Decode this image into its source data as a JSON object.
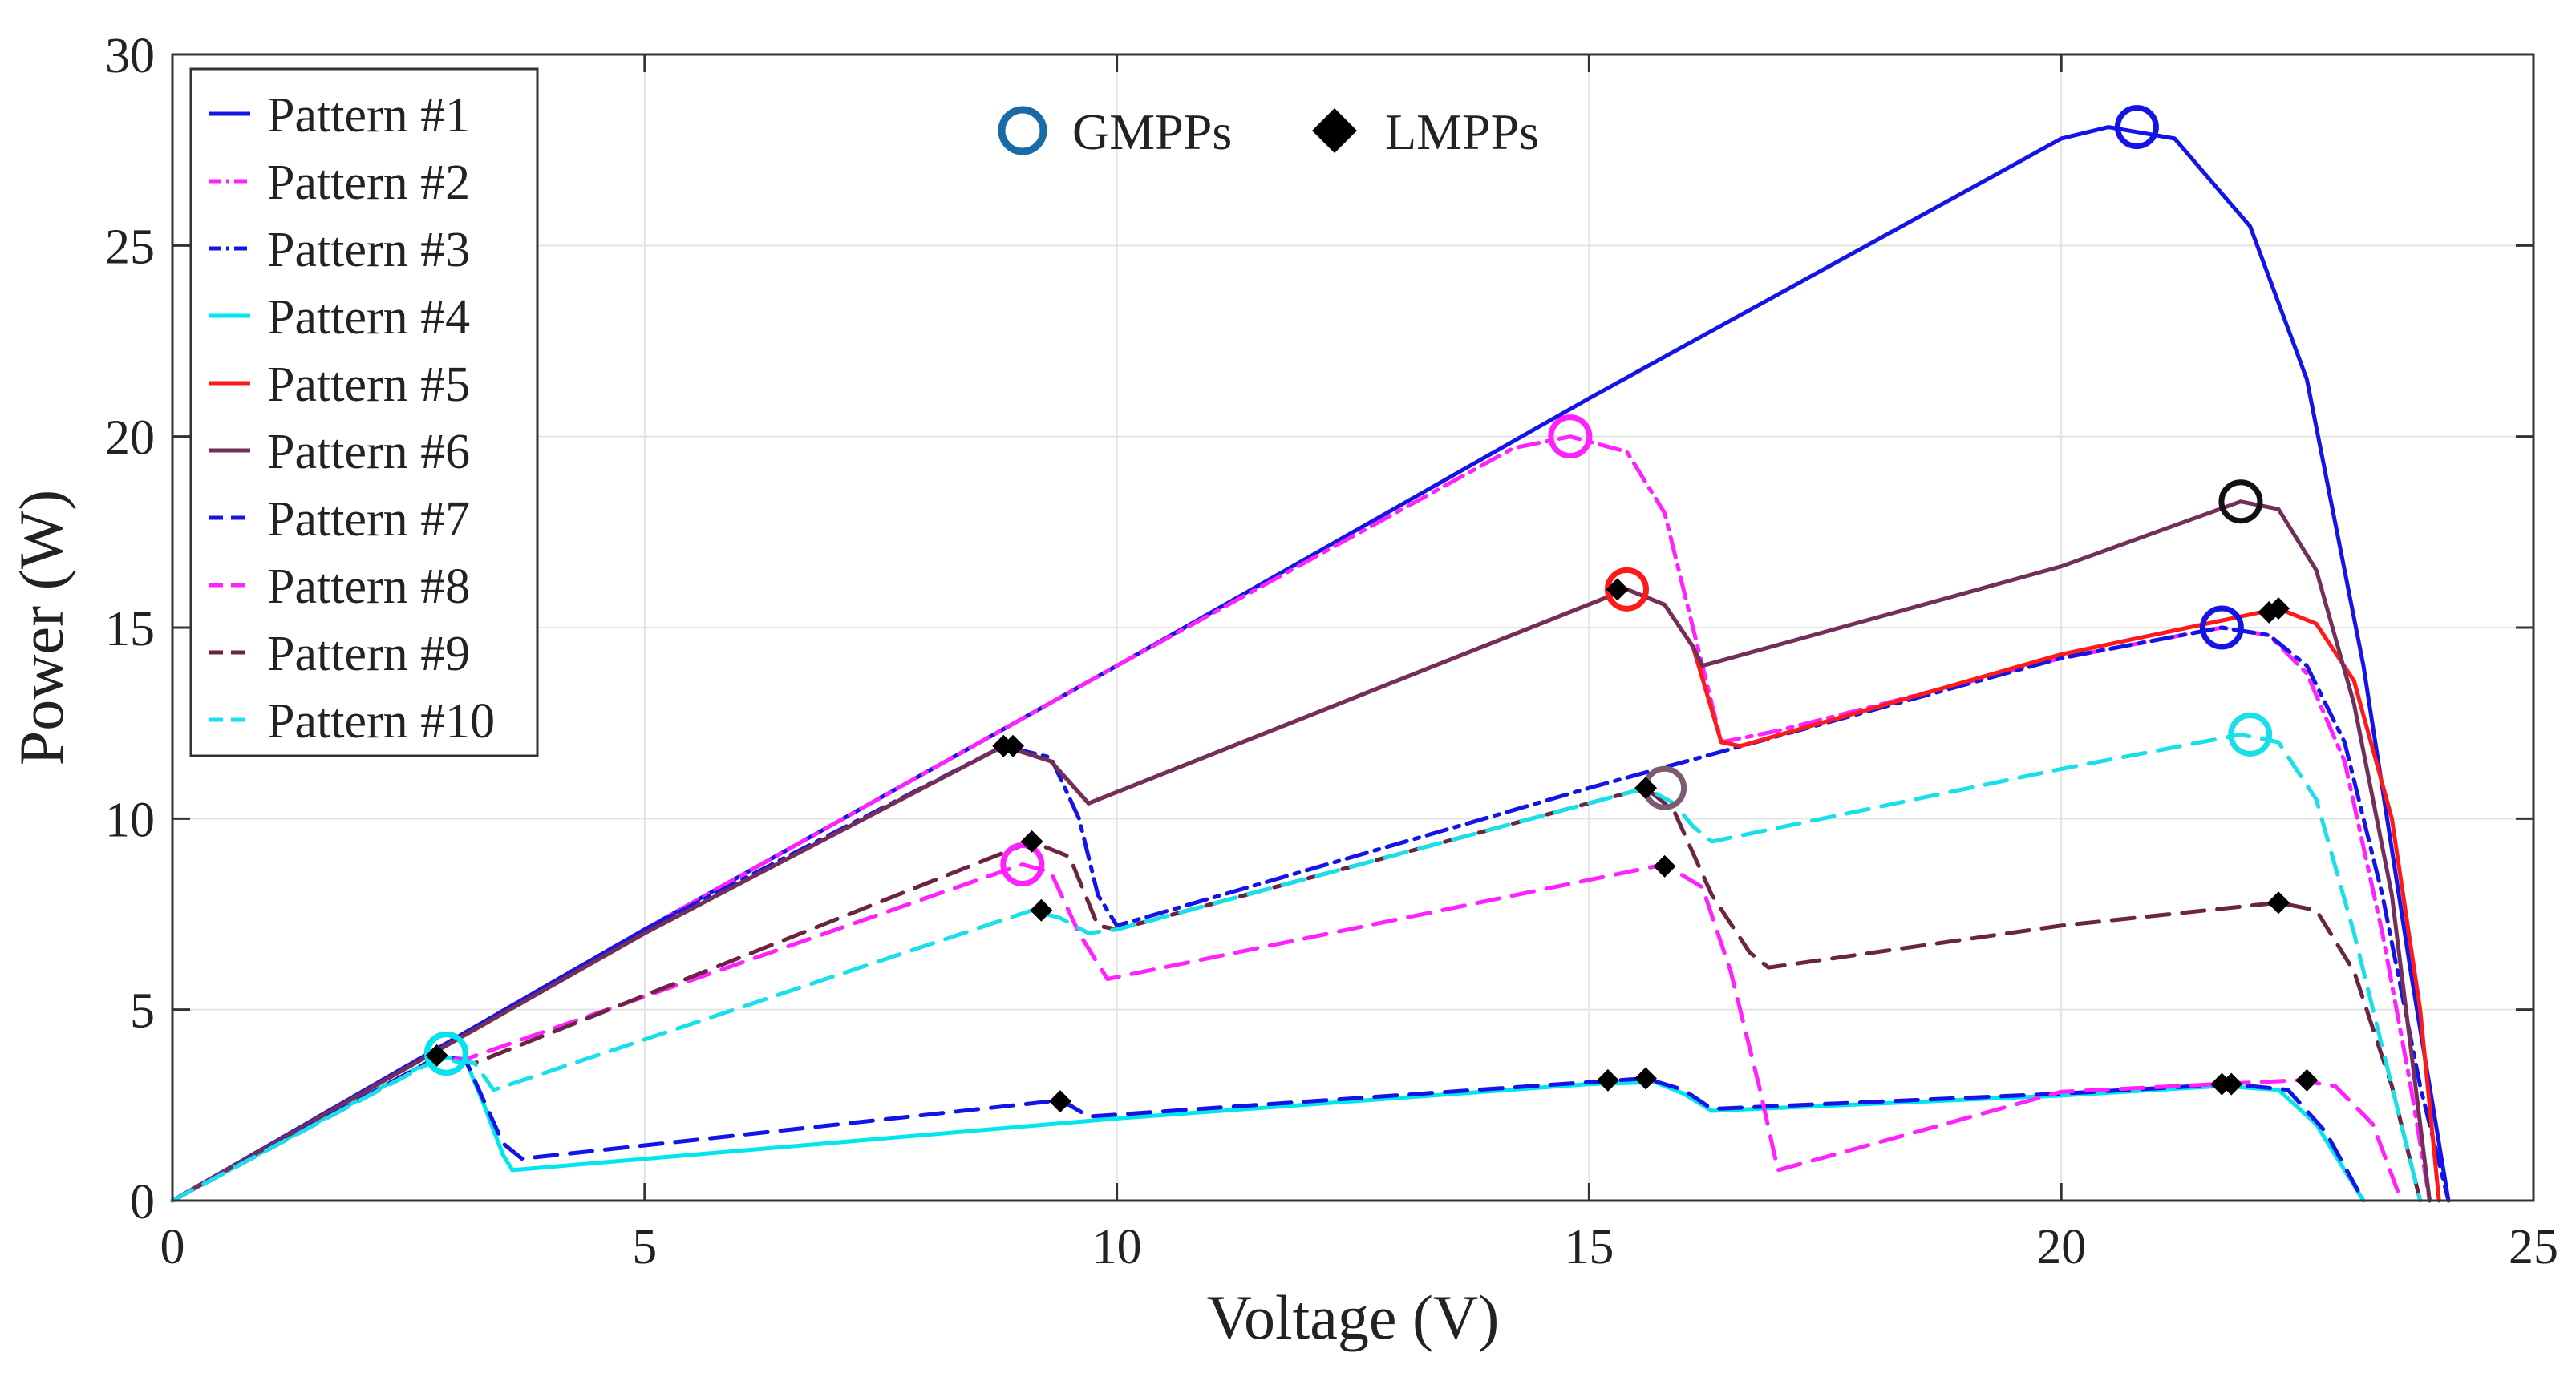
{
  "chart_data": {
    "type": "line",
    "title": "",
    "xlabel": "Voltage (V)",
    "ylabel": "Power (W)",
    "xlim": [
      0,
      25
    ],
    "ylim": [
      0,
      30
    ],
    "xticks": [
      0,
      5,
      10,
      15,
      20,
      25
    ],
    "yticks": [
      0,
      5,
      10,
      15,
      20,
      25,
      30
    ],
    "grid": true,
    "legend_position": "top-left",
    "markers_legend": {
      "gmpp_label": "GMPPs",
      "lmpp_label": "LMPPs"
    },
    "series": [
      {
        "name": "Pattern #1",
        "color": "#1414e6",
        "dash": "solid",
        "points": [
          [
            0,
            0
          ],
          [
            5,
            7.1
          ],
          [
            10,
            14
          ],
          [
            15,
            21
          ],
          [
            20,
            27.8
          ],
          [
            20.5,
            28.1
          ],
          [
            21.2,
            27.8
          ],
          [
            22,
            25.5
          ],
          [
            22.6,
            21.5
          ],
          [
            23.2,
            14
          ],
          [
            23.7,
            6
          ],
          [
            24.1,
            0
          ]
        ]
      },
      {
        "name": "Pattern #2",
        "color": "#ff22ff",
        "dash": "dashdot",
        "points": [
          [
            0,
            0
          ],
          [
            5,
            7.1
          ],
          [
            10,
            14
          ],
          [
            14.2,
            19.7
          ],
          [
            14.8,
            20
          ],
          [
            15.4,
            19.6
          ],
          [
            15.8,
            18
          ],
          [
            16.1,
            15
          ],
          [
            16.4,
            12
          ],
          [
            17,
            12.3
          ],
          [
            20,
            14.2
          ],
          [
            21.7,
            15
          ],
          [
            22.2,
            14.8
          ],
          [
            22.6,
            13.8
          ],
          [
            23,
            11.5
          ],
          [
            23.4,
            7
          ],
          [
            23.7,
            3
          ],
          [
            23.9,
            0
          ]
        ]
      },
      {
        "name": "Pattern #3",
        "color": "#1414e6",
        "dash": "dashdot",
        "points": [
          [
            0,
            0
          ],
          [
            5,
            7.1
          ],
          [
            8.8,
            11.9
          ],
          [
            9.3,
            11.6
          ],
          [
            9.6,
            10
          ],
          [
            9.8,
            8
          ],
          [
            10,
            7.2
          ],
          [
            15,
            10.8
          ],
          [
            20,
            14.2
          ],
          [
            21.7,
            15
          ],
          [
            22.2,
            14.8
          ],
          [
            22.6,
            14
          ],
          [
            23,
            12
          ],
          [
            23.4,
            8
          ],
          [
            23.8,
            3
          ],
          [
            24.1,
            0
          ]
        ]
      },
      {
        "name": "Pattern #4",
        "color": "#00e5ee",
        "dash": "solid",
        "points": [
          [
            0,
            0
          ],
          [
            2.8,
            3.75
          ],
          [
            3.1,
            3.7
          ],
          [
            3.3,
            2.5
          ],
          [
            3.5,
            1.2
          ],
          [
            3.6,
            0.8
          ],
          [
            10,
            2.15
          ],
          [
            15,
            3.05
          ],
          [
            15.7,
            3.1
          ],
          [
            16,
            2.8
          ],
          [
            16.3,
            2.35
          ],
          [
            20,
            2.75
          ],
          [
            21.7,
            3
          ],
          [
            22.3,
            2.9
          ],
          [
            22.7,
            2
          ],
          [
            23,
            0.8
          ],
          [
            23.2,
            0
          ]
        ]
      },
      {
        "name": "Pattern #5",
        "color": "#ff1a1a",
        "dash": "solid",
        "points": [
          [
            0,
            0
          ],
          [
            5,
            7
          ],
          [
            8.8,
            11.9
          ],
          [
            9.3,
            11.5
          ],
          [
            9.7,
            10.4
          ],
          [
            15.4,
            16
          ],
          [
            15.8,
            15.6
          ],
          [
            16.1,
            14.5
          ],
          [
            16.4,
            12
          ],
          [
            16.6,
            11.9
          ],
          [
            20,
            14.3
          ],
          [
            22.3,
            15.5
          ],
          [
            22.7,
            15.1
          ],
          [
            23.1,
            13.6
          ],
          [
            23.5,
            10
          ],
          [
            23.8,
            5
          ],
          [
            24,
            0
          ]
        ]
      },
      {
        "name": "Pattern #6",
        "color": "#722f59",
        "dash": "solid",
        "points": [
          [
            0,
            0
          ],
          [
            5,
            7
          ],
          [
            8.8,
            11.9
          ],
          [
            9.3,
            11.5
          ],
          [
            9.7,
            10.4
          ],
          [
            15.4,
            16
          ],
          [
            15.8,
            15.6
          ],
          [
            16.1,
            14.5
          ],
          [
            16.2,
            14
          ],
          [
            20,
            16.6
          ],
          [
            21.9,
            18.3
          ],
          [
            22.3,
            18.1
          ],
          [
            22.7,
            16.5
          ],
          [
            23.1,
            13
          ],
          [
            23.5,
            8
          ],
          [
            23.9,
            0
          ]
        ]
      },
      {
        "name": "Pattern #7",
        "color": "#1414e6",
        "dash": "dashed",
        "points": [
          [
            0,
            0
          ],
          [
            2.8,
            3.75
          ],
          [
            3.1,
            3.7
          ],
          [
            3.3,
            2.6
          ],
          [
            3.5,
            1.5
          ],
          [
            3.7,
            1.1
          ],
          [
            9.3,
            2.6
          ],
          [
            9.5,
            2.5
          ],
          [
            9.7,
            2.2
          ],
          [
            15,
            3.1
          ],
          [
            15.6,
            3.2
          ],
          [
            16,
            2.9
          ],
          [
            16.3,
            2.4
          ],
          [
            20,
            2.8
          ],
          [
            21.8,
            3.05
          ],
          [
            22.4,
            2.9
          ],
          [
            22.8,
            1.8
          ],
          [
            23.2,
            0
          ]
        ]
      },
      {
        "name": "Pattern #8",
        "color": "#ff22ff",
        "dash": "dashed",
        "points": [
          [
            0,
            0
          ],
          [
            2.8,
            3.7
          ],
          [
            3.1,
            3.7
          ],
          [
            9,
            8.8
          ],
          [
            9.3,
            8.6
          ],
          [
            9.6,
            7
          ],
          [
            9.9,
            5.8
          ],
          [
            15.8,
            8.8
          ],
          [
            16.2,
            8.2
          ],
          [
            16.5,
            6
          ],
          [
            16.8,
            3
          ],
          [
            17,
            0.8
          ],
          [
            20,
            2.85
          ],
          [
            22.5,
            3.15
          ],
          [
            22.9,
            3
          ],
          [
            23.3,
            2
          ],
          [
            23.6,
            0
          ]
        ]
      },
      {
        "name": "Pattern #9",
        "color": "#6b2542",
        "dash": "dashed",
        "points": [
          [
            0,
            0
          ],
          [
            2.8,
            3.7
          ],
          [
            3.2,
            3.6
          ],
          [
            9.1,
            9.4
          ],
          [
            9.5,
            9
          ],
          [
            9.8,
            7.2
          ],
          [
            10,
            7.1
          ],
          [
            15.6,
            10.8
          ],
          [
            15.9,
            10.2
          ],
          [
            16.3,
            8
          ],
          [
            16.7,
            6.5
          ],
          [
            16.9,
            6.1
          ],
          [
            20,
            7.2
          ],
          [
            22.3,
            7.8
          ],
          [
            22.7,
            7.6
          ],
          [
            23.1,
            6
          ],
          [
            23.5,
            3
          ],
          [
            23.8,
            0
          ]
        ]
      },
      {
        "name": "Pattern #10",
        "color": "#19e0e8",
        "dash": "dashed",
        "points": [
          [
            0,
            0
          ],
          [
            2.8,
            3.7
          ],
          [
            3.2,
            3.6
          ],
          [
            3.4,
            2.9
          ],
          [
            9.1,
            7.6
          ],
          [
            9.4,
            7.4
          ],
          [
            9.7,
            7
          ],
          [
            10,
            7.1
          ],
          [
            15.6,
            10.8
          ],
          [
            15.9,
            10.4
          ],
          [
            16.1,
            9.8
          ],
          [
            16.3,
            9.4
          ],
          [
            20,
            11.3
          ],
          [
            21.9,
            12.2
          ],
          [
            22.3,
            12
          ],
          [
            22.7,
            10.5
          ],
          [
            23.1,
            7
          ],
          [
            23.5,
            3
          ],
          [
            23.8,
            0
          ]
        ]
      }
    ],
    "gmpps": [
      {
        "x": 20.8,
        "y": 28.1,
        "color": "#1414e6"
      },
      {
        "x": 14.8,
        "y": 20.0,
        "color": "#ff22ff"
      },
      {
        "x": 21.9,
        "y": 18.3,
        "color": "#111111"
      },
      {
        "x": 15.4,
        "y": 16.0,
        "color": "#ff1a1a"
      },
      {
        "x": 21.7,
        "y": 15.0,
        "color": "#1414e6"
      },
      {
        "x": 22.0,
        "y": 12.2,
        "color": "#19e0e8"
      },
      {
        "x": 15.8,
        "y": 10.8,
        "color": "#7d5a6e"
      },
      {
        "x": 9.0,
        "y": 8.8,
        "color": "#ff22ff"
      },
      {
        "x": 2.9,
        "y": 3.85,
        "color": "#1414e6"
      },
      {
        "x": 2.9,
        "y": 3.85,
        "color": "#00e5ee"
      }
    ],
    "lmpps": [
      {
        "x": 8.8,
        "y": 11.9
      },
      {
        "x": 8.9,
        "y": 11.9
      },
      {
        "x": 15.3,
        "y": 16.0
      },
      {
        "x": 22.2,
        "y": 15.4
      },
      {
        "x": 22.3,
        "y": 15.5
      },
      {
        "x": 15.6,
        "y": 10.8
      },
      {
        "x": 9.1,
        "y": 9.4
      },
      {
        "x": 15.8,
        "y": 8.75
      },
      {
        "x": 9.2,
        "y": 7.6
      },
      {
        "x": 22.3,
        "y": 7.8
      },
      {
        "x": 9.4,
        "y": 2.6
      },
      {
        "x": 15.2,
        "y": 3.15
      },
      {
        "x": 15.6,
        "y": 3.2
      },
      {
        "x": 21.7,
        "y": 3.05
      },
      {
        "x": 21.8,
        "y": 3.05
      },
      {
        "x": 22.6,
        "y": 3.15
      },
      {
        "x": 2.8,
        "y": 3.8
      }
    ]
  }
}
